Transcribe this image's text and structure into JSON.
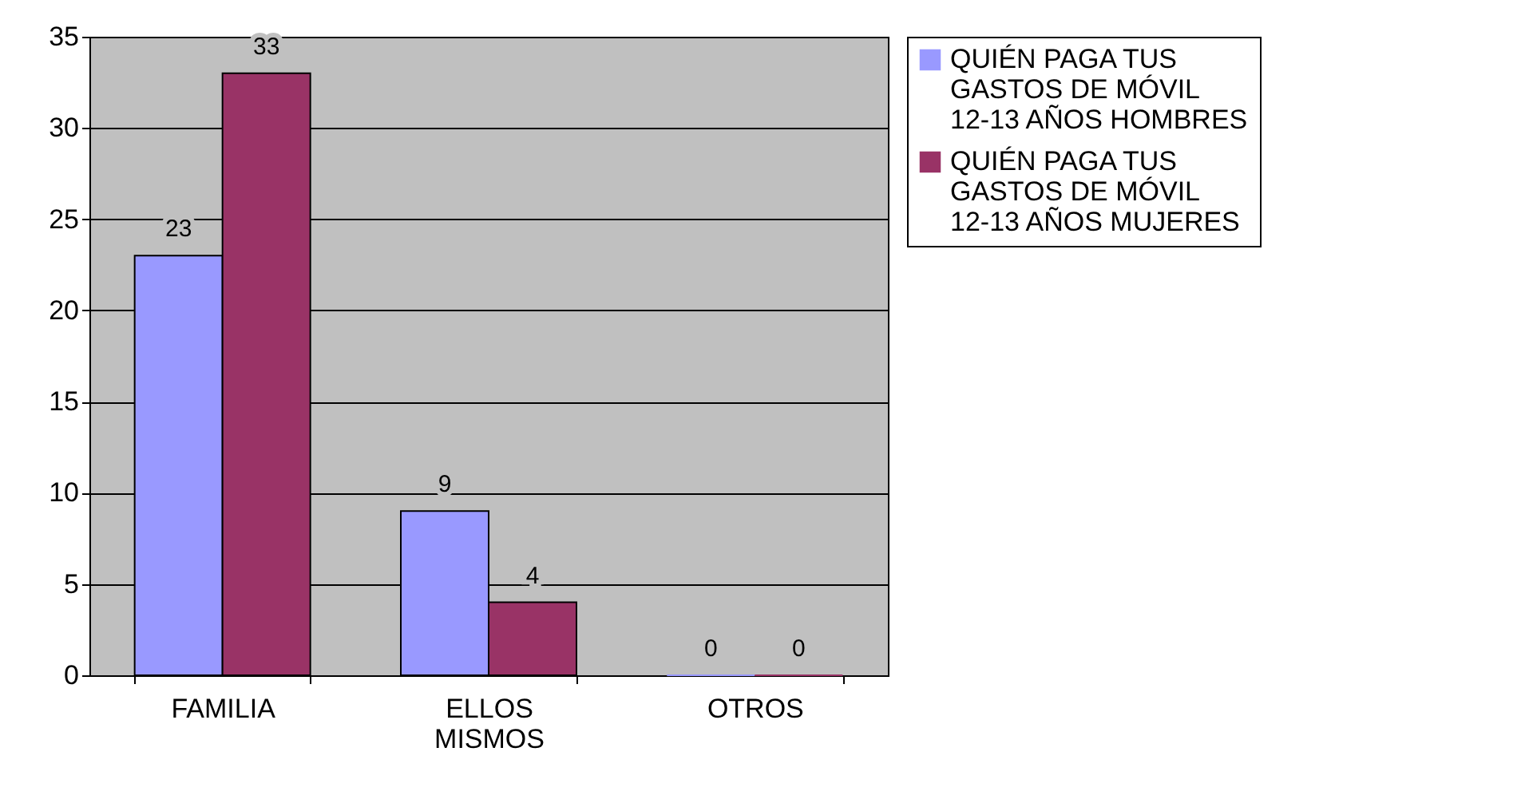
{
  "chart_data": {
    "type": "bar",
    "categories": [
      "FAMILIA",
      "ELLOS MISMOS",
      "OTROS"
    ],
    "series": [
      {
        "name": "QUIÉN PAGA TUS GASTOS DE MÓVIL 12-13 AÑOS HOMBRES",
        "color": "#9999ff",
        "values": [
          23,
          9,
          0
        ]
      },
      {
        "name": "QUIÉN PAGA TUS GASTOS DE MÓVIL 12-13 AÑOS MUJERES",
        "color": "#993366",
        "values": [
          33,
          4,
          0
        ]
      }
    ],
    "ylim": [
      0,
      35
    ],
    "yticks": [
      0,
      5,
      10,
      15,
      20,
      25,
      30,
      35
    ],
    "grid": "y",
    "legend": "right",
    "data_labels": true
  }
}
